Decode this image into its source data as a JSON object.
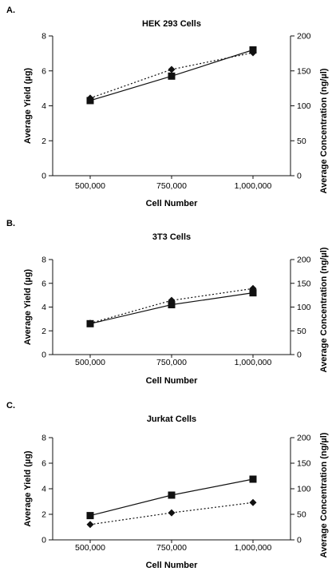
{
  "chart_data": [
    {
      "panel": "A.",
      "type": "line",
      "title": "HEK 293 Cells",
      "xlabel": "Cell Number",
      "ylabel": "Average Yield (µg)",
      "y2label": "Average Concentration (ng/µl)",
      "categories": [
        "500,000",
        "750,000",
        "1,000,000"
      ],
      "ylim": [
        0,
        8
      ],
      "y2lim": [
        0,
        200
      ],
      "yticks": [
        "0",
        "2",
        "4",
        "6",
        "8"
      ],
      "y2ticks": [
        "0",
        "50",
        "100",
        "150",
        "200"
      ],
      "series": [
        {
          "axis": "left",
          "marker": "square",
          "line": "solid",
          "values": [
            4.3,
            5.7,
            7.2
          ]
        },
        {
          "axis": "right",
          "marker": "diamond",
          "line": "dotted",
          "values": [
            111,
            152,
            176
          ]
        }
      ]
    },
    {
      "panel": "B.",
      "type": "line",
      "title": "3T3 Cells",
      "xlabel": "Cell Number",
      "ylabel": "Average Yield (µg)",
      "y2label": "Average Concentration (ng/µl)",
      "categories": [
        "500,000",
        "750,000",
        "1,000,000"
      ],
      "ylim": [
        0,
        8
      ],
      "y2lim": [
        0,
        200
      ],
      "yticks": [
        "0",
        "2",
        "4",
        "6",
        "8"
      ],
      "y2ticks": [
        "0",
        "50",
        "100",
        "150",
        "200"
      ],
      "series": [
        {
          "axis": "left",
          "marker": "square",
          "line": "solid",
          "values": [
            2.6,
            4.2,
            5.2
          ]
        },
        {
          "axis": "right",
          "marker": "diamond",
          "line": "dotted",
          "values": [
            66,
            114,
            139
          ]
        }
      ]
    },
    {
      "panel": "C.",
      "type": "line",
      "title": "Jurkat Cells",
      "xlabel": "Cell Number",
      "ylabel": "Average Yield (µg)",
      "y2label": "Average Concentration (ng/µl)",
      "categories": [
        "500,000",
        "750,000",
        "1,000,000"
      ],
      "ylim": [
        0,
        8
      ],
      "y2lim": [
        0,
        200
      ],
      "yticks": [
        "0",
        "2",
        "4",
        "6",
        "8"
      ],
      "y2ticks": [
        "0",
        "50",
        "100",
        "150",
        "200"
      ],
      "series": [
        {
          "axis": "left",
          "marker": "square",
          "line": "solid",
          "values": [
            1.9,
            3.5,
            4.75
          ]
        },
        {
          "axis": "right",
          "marker": "diamond",
          "line": "dotted",
          "values": [
            30,
            53,
            73
          ]
        }
      ]
    }
  ]
}
